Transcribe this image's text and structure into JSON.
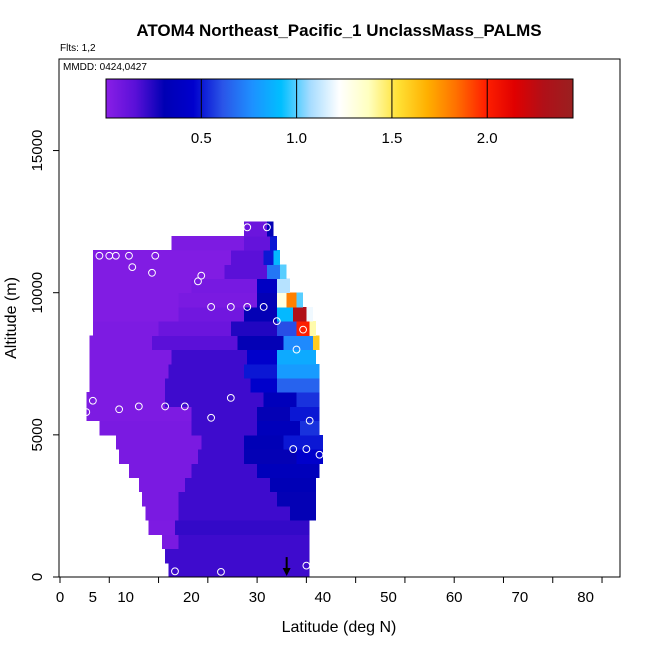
{
  "chart_data": {
    "type": "heatmap",
    "title": "ATOM4 Northeast_Pacific_1 UnclassMass_PALMS",
    "subtitle": "Flts: 1,2",
    "annotation": "MMDD: 0424,0427",
    "xlabel": "Latitude (deg N)",
    "ylabel": "Altitude (m)",
    "xlim": [
      0,
      85
    ],
    "ylim": [
      0,
      17500
    ],
    "x_ticks": [
      0,
      5,
      10,
      20,
      30,
      40,
      50,
      60,
      70,
      80
    ],
    "x_tick_labels": [
      "0",
      "5",
      "10",
      "20",
      "30",
      "40",
      "50",
      "60",
      "70",
      "80"
    ],
    "x_minor_ticks": [
      0,
      7.5,
      15,
      22.5,
      30,
      37.5,
      45,
      52.5,
      60,
      67.5,
      75,
      82.5
    ],
    "y_ticks": [
      0,
      5000,
      10000,
      15000
    ],
    "y_tick_labels": [
      "0",
      "5000",
      "10000",
      "15000"
    ],
    "colorbar": {
      "range": [
        0,
        2.45
      ],
      "ticks": [
        0.5,
        1.0,
        1.5,
        2.0
      ],
      "tick_labels": [
        "0.5",
        "1.0",
        "1.5",
        "2.0"
      ],
      "colors": [
        "#8a1fe6",
        "#5a10d8",
        "#0000b4",
        "#0000cd",
        "#2a55e8",
        "#1e90ff",
        "#00bfff",
        "#a6dcff",
        "#ffffff",
        "#ffffbf",
        "#ffe135",
        "#ffb000",
        "#ff7000",
        "#ff2000",
        "#e00000",
        "#b01018",
        "#9a2020"
      ]
    },
    "rows": [
      {
        "y0": 0,
        "y1": 500,
        "cells": [
          [
            16.5,
            38.0,
            0.2
          ]
        ]
      },
      {
        "y0": 500,
        "y1": 1000,
        "cells": [
          [
            16.0,
            38.0,
            0.2
          ]
        ]
      },
      {
        "y0": 1000,
        "y1": 1500,
        "cells": [
          [
            15.5,
            18.0,
            0.05
          ],
          [
            18.0,
            38.0,
            0.2
          ]
        ]
      },
      {
        "y0": 1500,
        "y1": 2000,
        "cells": [
          [
            13.5,
            17.5,
            0.04
          ],
          [
            17.5,
            38.0,
            0.22
          ]
        ]
      },
      {
        "y0": 2000,
        "y1": 2500,
        "cells": [
          [
            13.0,
            18.0,
            0.05
          ],
          [
            18.0,
            35.0,
            0.2
          ],
          [
            35.0,
            39.0,
            0.3
          ]
        ]
      },
      {
        "y0": 2500,
        "y1": 3000,
        "cells": [
          [
            12.5,
            18.0,
            0.05
          ],
          [
            18.0,
            33.0,
            0.2
          ],
          [
            33.0,
            39.0,
            0.3
          ]
        ]
      },
      {
        "y0": 3000,
        "y1": 3500,
        "cells": [
          [
            12.0,
            19.0,
            0.05
          ],
          [
            19.0,
            32.0,
            0.2
          ],
          [
            32.0,
            39.0,
            0.32
          ]
        ]
      },
      {
        "y0": 3500,
        "y1": 4000,
        "cells": [
          [
            10.5,
            20.0,
            0.05
          ],
          [
            20.0,
            30.0,
            0.2
          ],
          [
            30.0,
            39.5,
            0.35
          ]
        ]
      },
      {
        "y0": 4000,
        "y1": 4500,
        "cells": [
          [
            9.0,
            21.0,
            0.05
          ],
          [
            21.0,
            28.0,
            0.2
          ],
          [
            28.0,
            36.0,
            0.3
          ],
          [
            36.0,
            40.0,
            0.45
          ]
        ]
      },
      {
        "y0": 4500,
        "y1": 5000,
        "cells": [
          [
            8.5,
            21.5,
            0.05
          ],
          [
            21.5,
            28.0,
            0.2
          ],
          [
            28.0,
            34.0,
            0.32
          ],
          [
            34.0,
            40.0,
            0.5
          ]
        ]
      },
      {
        "y0": 5000,
        "y1": 5500,
        "cells": [
          [
            6.0,
            20.0,
            0.05
          ],
          [
            20.0,
            30.0,
            0.2
          ],
          [
            30.0,
            36.5,
            0.35
          ],
          [
            36.5,
            39.5,
            0.55
          ]
        ]
      },
      {
        "y0": 5500,
        "y1": 6000,
        "cells": [
          [
            4.0,
            20.0,
            0.04
          ],
          [
            20.0,
            30.0,
            0.2
          ],
          [
            30.0,
            35.0,
            0.3
          ],
          [
            35.0,
            39.5,
            0.5
          ]
        ]
      },
      {
        "y0": 6000,
        "y1": 6500,
        "cells": [
          [
            4.0,
            16.0,
            0.04
          ],
          [
            16.0,
            31.0,
            0.2
          ],
          [
            31.0,
            36.0,
            0.35
          ],
          [
            36.0,
            39.5,
            0.55
          ]
        ]
      },
      {
        "y0": 6500,
        "y1": 7000,
        "cells": [
          [
            4.5,
            16.0,
            0.04
          ],
          [
            16.0,
            29.0,
            0.2
          ],
          [
            29.0,
            33.0,
            0.45
          ],
          [
            33.0,
            39.5,
            0.65
          ]
        ]
      },
      {
        "y0": 7000,
        "y1": 7500,
        "cells": [
          [
            4.5,
            16.5,
            0.04
          ],
          [
            16.5,
            28.0,
            0.2
          ],
          [
            28.0,
            33.0,
            0.5
          ],
          [
            33.0,
            39.5,
            0.8
          ]
        ]
      },
      {
        "y0": 7500,
        "y1": 8000,
        "cells": [
          [
            4.5,
            17.0,
            0.04
          ],
          [
            17.0,
            28.5,
            0.2
          ],
          [
            28.5,
            33.0,
            0.45
          ],
          [
            33.0,
            39.0,
            0.85
          ]
        ]
      },
      {
        "y0": 8000,
        "y1": 8500,
        "cells": [
          [
            4.5,
            14.0,
            0.04
          ],
          [
            14.0,
            27.0,
            0.15
          ],
          [
            27.0,
            34.0,
            0.3
          ],
          [
            34.0,
            38.5,
            0.75
          ],
          [
            38.5,
            39.5,
            1.6
          ]
        ]
      },
      {
        "y0": 8500,
        "y1": 9000,
        "cells": [
          [
            5.0,
            15.0,
            0.04
          ],
          [
            15.0,
            26.0,
            0.1
          ],
          [
            26.0,
            33.0,
            0.25
          ],
          [
            33.0,
            36.0,
            0.6
          ],
          [
            36.0,
            38.0,
            2.0
          ],
          [
            38.0,
            39.0,
            1.4
          ]
        ]
      },
      {
        "y0": 9000,
        "y1": 9500,
        "cells": [
          [
            5.0,
            18.0,
            0.03
          ],
          [
            18.0,
            28.0,
            0.08
          ],
          [
            28.0,
            33.0,
            0.3
          ],
          [
            33.0,
            35.5,
            0.9
          ],
          [
            35.5,
            37.5,
            2.3
          ],
          [
            37.5,
            38.5,
            1.2
          ]
        ]
      },
      {
        "y0": 9500,
        "y1": 10000,
        "cells": [
          [
            5.0,
            18.0,
            0.03
          ],
          [
            18.0,
            30.0,
            0.05
          ],
          [
            30.0,
            33.0,
            0.3
          ],
          [
            33.0,
            34.5,
            1.3
          ],
          [
            34.5,
            36.0,
            1.8
          ],
          [
            36.0,
            37.0,
            1.0
          ]
        ]
      },
      {
        "y0": 10000,
        "y1": 10500,
        "cells": [
          [
            5.0,
            20.0,
            0.03
          ],
          [
            20.0,
            30.0,
            0.06
          ],
          [
            30.0,
            33.0,
            0.4
          ],
          [
            33.0,
            35.0,
            1.1
          ]
        ]
      },
      {
        "y0": 10500,
        "y1": 11000,
        "cells": [
          [
            5.0,
            25.0,
            0.03
          ],
          [
            25.0,
            31.5,
            0.15
          ],
          [
            31.5,
            33.5,
            0.7
          ],
          [
            33.5,
            34.5,
            1.0
          ]
        ]
      },
      {
        "y0": 11000,
        "y1": 11500,
        "cells": [
          [
            5.0,
            26.0,
            0.03
          ],
          [
            26.0,
            31.0,
            0.15
          ],
          [
            31.0,
            32.5,
            0.5
          ],
          [
            32.5,
            33.5,
            0.9
          ]
        ]
      },
      {
        "y0": 11500,
        "y1": 12000,
        "cells": [
          [
            17.0,
            28.0,
            0.04
          ],
          [
            28.0,
            32.0,
            0.12
          ],
          [
            32.0,
            33.0,
            0.5
          ]
        ]
      },
      {
        "y0": 12000,
        "y1": 12500,
        "cells": [
          [
            28.0,
            31.5,
            0.1
          ],
          [
            31.5,
            32.5,
            0.3
          ]
        ]
      }
    ],
    "points": [
      [
        17.5,
        200
      ],
      [
        24.5,
        180
      ],
      [
        37.5,
        400
      ],
      [
        35.5,
        4500
      ],
      [
        37.5,
        4500
      ],
      [
        39.5,
        4300
      ],
      [
        4.0,
        5800
      ],
      [
        5.0,
        6200
      ],
      [
        9.0,
        5900
      ],
      [
        12.0,
        6000
      ],
      [
        16.0,
        6000
      ],
      [
        19.0,
        6000
      ],
      [
        23.0,
        5600
      ],
      [
        26.0,
        6300
      ],
      [
        36.0,
        8000
      ],
      [
        38.0,
        5500
      ],
      [
        37.0,
        8700
      ],
      [
        33.0,
        9000
      ],
      [
        23.0,
        9500
      ],
      [
        26.0,
        9500
      ],
      [
        28.5,
        9500
      ],
      [
        31.0,
        9500
      ],
      [
        21.0,
        10400
      ],
      [
        21.5,
        10600
      ],
      [
        14.0,
        10700
      ],
      [
        11.0,
        10900
      ],
      [
        6.0,
        11300
      ],
      [
        7.5,
        11300
      ],
      [
        8.5,
        11300
      ],
      [
        10.5,
        11300
      ],
      [
        14.5,
        11300
      ],
      [
        28.5,
        12300
      ],
      [
        31.5,
        12300
      ]
    ],
    "arrow": {
      "x": 34.5,
      "y_from": 700,
      "y_to": 0
    }
  }
}
